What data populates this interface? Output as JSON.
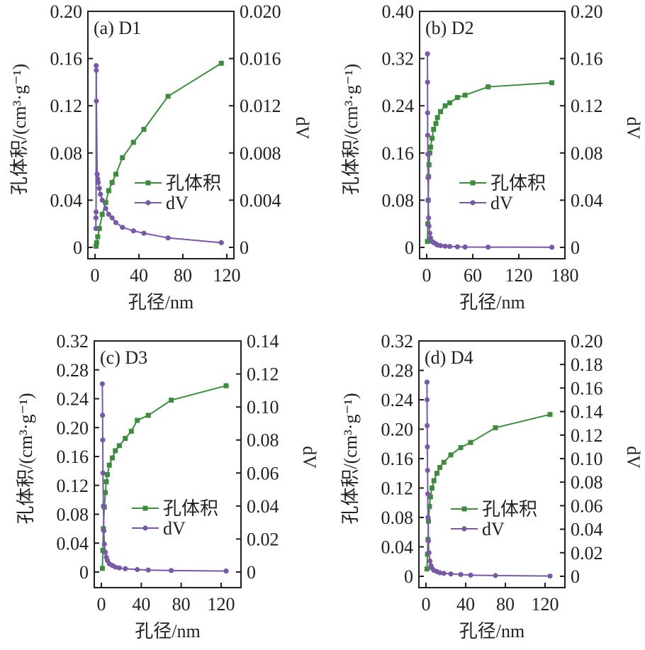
{
  "colors": {
    "pore_volume": "#3b8d3b",
    "dV": "#7858a8",
    "axis": "#231f20"
  },
  "chart_data": [
    {
      "type": "line",
      "panel_label": "(a)  D1",
      "xlabel": "孔径/nm",
      "ylabel": "孔体积/(cm³·g⁻¹)",
      "y2label": "dV",
      "xlim": [
        0,
        130
      ],
      "xticks": [
        0,
        40,
        80,
        120
      ],
      "xtick_labels": [
        "0",
        "40",
        "80",
        "120"
      ],
      "ylim": [
        0,
        0.2
      ],
      "yticks": [
        0,
        0.04,
        0.08,
        0.12,
        0.16,
        0.2
      ],
      "ytick_labels": [
        "0",
        "0.04",
        "0.08",
        "0.12",
        "0.16",
        "0.20"
      ],
      "y2lim": [
        0,
        0.02
      ],
      "y2ticks": [
        0,
        0.004,
        0.008,
        0.012,
        0.016,
        0.02
      ],
      "y2tick_labels": [
        "0",
        "0.004",
        "0.008",
        "0.012",
        "0.016",
        "0.020"
      ],
      "legend": [
        "孔体积",
        "dV"
      ],
      "legend_position": "center-right",
      "series": [
        {
          "name": "孔体积",
          "axis": "left",
          "marker": "square",
          "x": [
            1,
            1.5,
            2.5,
            4,
            6.6,
            9.8,
            12.5,
            15.6,
            19,
            25,
            35,
            44.5,
            66.5,
            115
          ],
          "y": [
            0.001,
            0.004,
            0.009,
            0.016,
            0.028,
            0.038,
            0.048,
            0.055,
            0.062,
            0.076,
            0.089,
            0.1,
            0.128,
            0.156
          ]
        },
        {
          "name": "dV",
          "axis": "right",
          "marker": "circle",
          "x": [
            0.8,
            0.9,
            1.0,
            1.1,
            1.2,
            1.3,
            2,
            2.5,
            3,
            4,
            5,
            6.6,
            9.8,
            12.5,
            15.6,
            19,
            25,
            35,
            44.5,
            66.5,
            115
          ],
          "y": [
            0.0016,
            0.0025,
            0.003,
            0.0154,
            0.015,
            0.0124,
            0.0062,
            0.0058,
            0.0055,
            0.005,
            0.0045,
            0.004,
            0.0033,
            0.0028,
            0.0025,
            0.0021,
            0.0017,
            0.0014,
            0.0012,
            0.0008,
            0.0004
          ]
        }
      ]
    },
    {
      "type": "line",
      "panel_label": "(b)  D2",
      "xlabel": "孔径/nm",
      "ylabel": "孔体积/(cm³·g⁻¹)",
      "y2label": "dV",
      "xlim": [
        0,
        180
      ],
      "xticks": [
        0,
        60,
        120,
        180
      ],
      "xtick_labels": [
        "0",
        "60",
        "120",
        "180"
      ],
      "ylim": [
        0,
        0.4
      ],
      "yticks": [
        0,
        0.08,
        0.16,
        0.24,
        0.32,
        0.4
      ],
      "ytick_labels": [
        "0",
        "0.08",
        "0.16",
        "0.24",
        "0.32",
        "0.40"
      ],
      "y2lim": [
        0,
        0.2
      ],
      "y2ticks": [
        0,
        0.04,
        0.08,
        0.12,
        0.16,
        0.2
      ],
      "y2tick_labels": [
        "0",
        "0.04",
        "0.08",
        "0.12",
        "0.16",
        "0.20"
      ],
      "legend": [
        "孔体积",
        "dV"
      ],
      "legend_position": "center-right",
      "series": [
        {
          "name": "孔体积",
          "axis": "left",
          "marker": "square",
          "x": [
            1,
            1.5,
            2,
            2.5,
            3,
            4,
            5,
            7,
            9,
            12,
            14,
            18,
            24,
            30,
            40,
            50,
            80,
            163
          ],
          "y": [
            0.01,
            0.04,
            0.08,
            0.12,
            0.14,
            0.16,
            0.17,
            0.185,
            0.2,
            0.21,
            0.22,
            0.23,
            0.24,
            0.245,
            0.254,
            0.258,
            0.272,
            0.279
          ]
        },
        {
          "name": "dV",
          "axis": "right",
          "marker": "circle",
          "x": [
            1,
            1.1,
            1.2,
            1.3,
            1.5,
            1.7,
            2,
            2.5,
            3,
            4,
            5,
            7,
            9,
            12,
            14,
            18,
            24,
            30,
            40,
            50,
            80,
            163
          ],
          "y": [
            0.164,
            0.14,
            0.114,
            0.095,
            0.079,
            0.059,
            0.04,
            0.025,
            0.018,
            0.012,
            0.008,
            0.005,
            0.004,
            0.003,
            0.002,
            0.0015,
            0.001,
            0.0008,
            0.0005,
            0.0003,
            0.0002,
            0.0001
          ]
        }
      ]
    },
    {
      "type": "line",
      "panel_label": "(c)  D3",
      "xlabel": "孔径/nm",
      "ylabel": "孔体积/(cm³·g⁻¹)",
      "y2label": "dV",
      "xlim": [
        0,
        130
      ],
      "xticks": [
        0,
        40,
        80,
        120
      ],
      "xtick_labels": [
        "0",
        "40",
        "80",
        "120"
      ],
      "ylim": [
        0,
        0.32
      ],
      "yticks": [
        0,
        0.04,
        0.08,
        0.12,
        0.16,
        0.2,
        0.24,
        0.28,
        0.32
      ],
      "ytick_labels": [
        "0",
        "0.04",
        "0.08",
        "0.12",
        "0.16",
        "0.20",
        "0.24",
        "0.28",
        "0.32"
      ],
      "y2lim": [
        0,
        0.14
      ],
      "y2ticks": [
        0,
        0.02,
        0.04,
        0.06,
        0.08,
        0.1,
        0.12,
        0.14
      ],
      "y2tick_labels": [
        "0",
        "0.02",
        "0.04",
        "0.06",
        "0.08",
        "0.10",
        "0.12",
        "0.14"
      ],
      "legend": [
        "孔体积",
        "dV"
      ],
      "legend_position": "center-right",
      "series": [
        {
          "name": "孔体积",
          "axis": "left",
          "marker": "square",
          "x": [
            1,
            1.5,
            2,
            3,
            4,
            5,
            6,
            8,
            11,
            14,
            18,
            24,
            30,
            36,
            47,
            70,
            125
          ],
          "y": [
            0.005,
            0.03,
            0.06,
            0.09,
            0.11,
            0.125,
            0.135,
            0.148,
            0.158,
            0.168,
            0.175,
            0.185,
            0.195,
            0.21,
            0.217,
            0.238,
            0.258
          ]
        },
        {
          "name": "dV",
          "axis": "right",
          "marker": "circle",
          "x": [
            1,
            1.2,
            1.4,
            1.6,
            2,
            2.5,
            3,
            4,
            5,
            6,
            8,
            11,
            14,
            18,
            24,
            36,
            47,
            70,
            125
          ],
          "y": [
            0.114,
            0.095,
            0.08,
            0.06,
            0.04,
            0.025,
            0.017,
            0.012,
            0.009,
            0.007,
            0.005,
            0.004,
            0.003,
            0.0025,
            0.002,
            0.0015,
            0.0012,
            0.0009,
            0.0006
          ]
        }
      ]
    },
    {
      "type": "line",
      "panel_label": "(d)  D4",
      "xlabel": "孔径/nm",
      "ylabel": "孔体积/(cm³·g⁻¹)",
      "y2label": "dV",
      "xlim": [
        0,
        130
      ],
      "xticks": [
        0,
        40,
        80,
        120
      ],
      "xtick_labels": [
        "0",
        "40",
        "80",
        "120"
      ],
      "ylim": [
        0,
        0.32
      ],
      "yticks": [
        0,
        0.04,
        0.08,
        0.12,
        0.16,
        0.2,
        0.24,
        0.28,
        0.32
      ],
      "ytick_labels": [
        "0",
        "0.04",
        "0.08",
        "0.12",
        "0.16",
        "0.20",
        "0.24",
        "0.28",
        "0.32"
      ],
      "y2lim": [
        0,
        0.2
      ],
      "y2ticks": [
        0,
        0.02,
        0.04,
        0.06,
        0.08,
        0.1,
        0.12,
        0.14,
        0.16,
        0.18,
        0.2
      ],
      "y2tick_labels": [
        "0",
        "0.02",
        "0.04",
        "0.06",
        "0.08",
        "0.10",
        "0.12",
        "0.14",
        "0.16",
        "0.18",
        "0.20"
      ],
      "legend": [
        "孔体积",
        "dV"
      ],
      "legend_position": "center-right",
      "series": [
        {
          "name": "孔体积",
          "axis": "left",
          "marker": "square",
          "x": [
            1,
            1.5,
            2,
            2.5,
            3.5,
            4.5,
            6,
            8,
            11,
            14,
            18,
            25,
            35,
            45,
            70,
            125
          ],
          "y": [
            0.01,
            0.03,
            0.05,
            0.075,
            0.095,
            0.108,
            0.12,
            0.13,
            0.14,
            0.148,
            0.155,
            0.165,
            0.175,
            0.182,
            0.202,
            0.22
          ]
        },
        {
          "name": "dV",
          "axis": "right",
          "marker": "circle",
          "x": [
            1,
            1.1,
            1.2,
            1.4,
            1.6,
            1.8,
            2,
            2.5,
            3,
            4,
            5,
            6,
            8,
            11,
            14,
            18,
            25,
            35,
            45,
            70,
            125
          ],
          "y": [
            0.165,
            0.15,
            0.128,
            0.11,
            0.09,
            0.07,
            0.05,
            0.03,
            0.02,
            0.013,
            0.009,
            0.007,
            0.005,
            0.004,
            0.003,
            0.0025,
            0.002,
            0.0015,
            0.001,
            0.0006,
            0.0002
          ]
        }
      ]
    }
  ]
}
